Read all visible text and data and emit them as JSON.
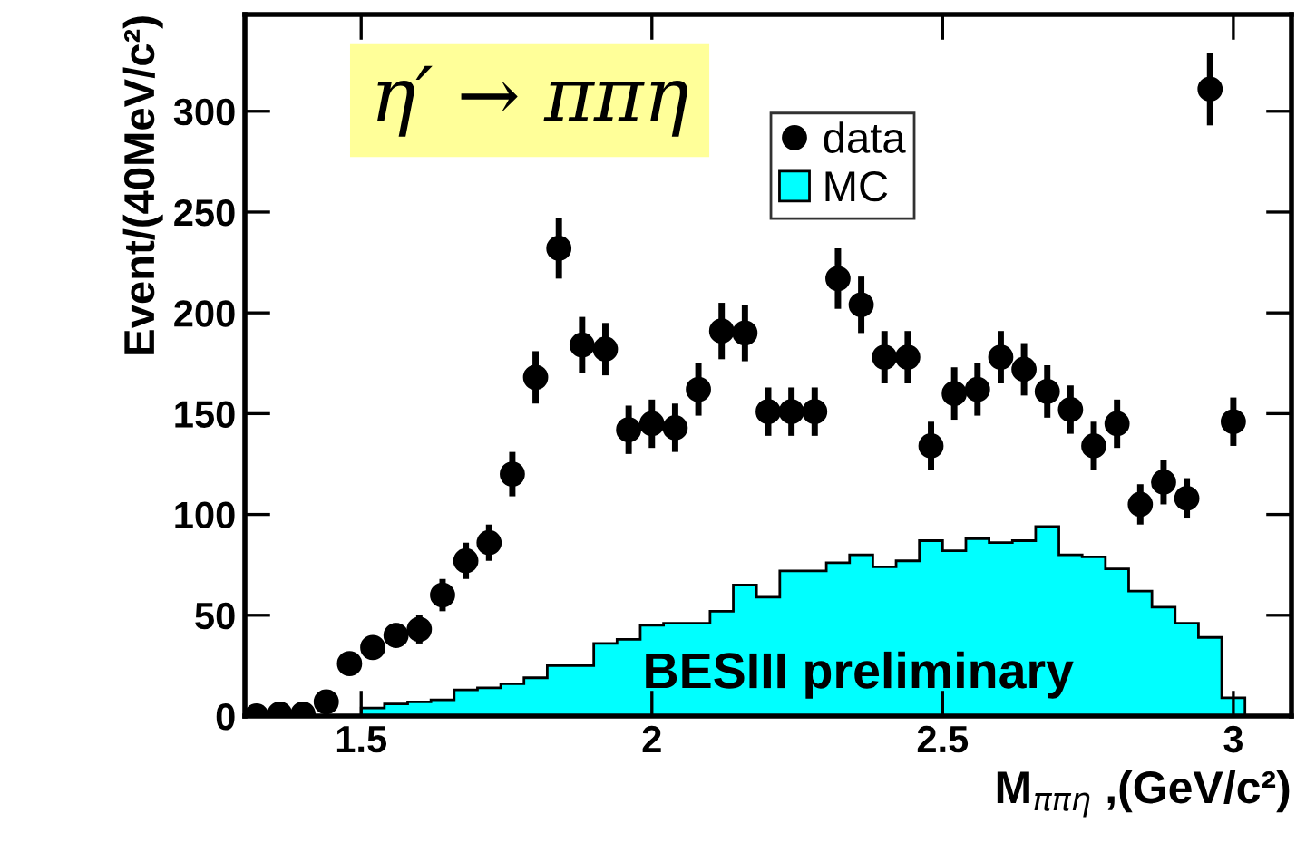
{
  "chart_data": {
    "type": "scatter",
    "xlabel": "M$_{ππη}$ ,(GeV/c²)",
    "ylabel": "Event/(40MeV/c²)",
    "annotations": [
      "η′ → ππη",
      "BESIII preliminary"
    ],
    "xlim": [
      1.3,
      3.1
    ],
    "xticks": [
      1.5,
      2,
      2.5,
      3
    ],
    "ylim": [
      0,
      348
    ],
    "yticks": [
      0,
      50,
      100,
      150,
      200,
      250,
      300
    ],
    "grid": false,
    "legend": "top right",
    "series": [
      {
        "name": "data",
        "color": "#000000",
        "marker": "circle",
        "x": [
          1.32,
          1.36,
          1.4,
          1.44,
          1.48,
          1.52,
          1.56,
          1.6,
          1.64,
          1.68,
          1.72,
          1.76,
          1.8,
          1.84,
          1.88,
          1.92,
          1.96,
          2.0,
          2.04,
          2.08,
          2.12,
          2.16,
          2.2,
          2.24,
          2.28,
          2.32,
          2.36,
          2.4,
          2.44,
          2.48,
          2.52,
          2.56,
          2.6,
          2.64,
          2.68,
          2.72,
          2.76,
          2.8,
          2.84,
          2.88,
          2.92,
          2.96,
          3.0
        ],
        "values": [
          0,
          1,
          1,
          7,
          26,
          34,
          40,
          43,
          60,
          77,
          86,
          120,
          168,
          232,
          184,
          182,
          142,
          145,
          143,
          162,
          191,
          190,
          151,
          151,
          151,
          217,
          204,
          178,
          178,
          134,
          160,
          162,
          178,
          172,
          161,
          152,
          134,
          145,
          105,
          116,
          108,
          311,
          146
        ],
        "errors": [
          1,
          1,
          1,
          3,
          5,
          6,
          6,
          7,
          8,
          9,
          9,
          11,
          13,
          15,
          14,
          13,
          12,
          12,
          12,
          13,
          14,
          14,
          12,
          12,
          12,
          15,
          14,
          13,
          13,
          12,
          13,
          13,
          13,
          13,
          13,
          12,
          12,
          12,
          10,
          11,
          10,
          18,
          12
        ]
      },
      {
        "name": "MC",
        "type": "histogram",
        "color": "#00ffff",
        "bins": [
          1.5,
          1.54,
          1.58,
          1.62,
          1.66,
          1.7,
          1.74,
          1.78,
          1.82,
          1.86,
          1.9,
          1.94,
          1.98,
          2.02,
          2.06,
          2.1,
          2.14,
          2.18,
          2.22,
          2.26,
          2.3,
          2.34,
          2.38,
          2.42,
          2.46,
          2.5,
          2.54,
          2.58,
          2.62,
          2.66,
          2.7,
          2.74,
          2.78,
          2.82,
          2.86,
          2.9,
          2.94,
          2.98,
          3.02
        ],
        "values": [
          4,
          6,
          7,
          8,
          13,
          14,
          16,
          19,
          25,
          25,
          36,
          38,
          45,
          46,
          46,
          52,
          65,
          59,
          72,
          72,
          76,
          80,
          74,
          77,
          87,
          82,
          88,
          86,
          87,
          94,
          80,
          79,
          73,
          62,
          54,
          46,
          39,
          9
        ]
      }
    ]
  }
}
